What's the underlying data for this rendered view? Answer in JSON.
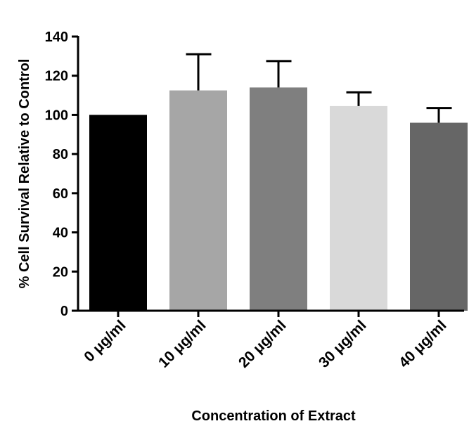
{
  "chart_data": {
    "type": "bar",
    "title": "",
    "xlabel": "Concentration of Extract",
    "ylabel": "% Cell Survival Relative to Control",
    "categories": [
      "0 μg/ml",
      "10 μg/ml",
      "20 μg/ml",
      "30 μg/ml",
      "40 μg/ml"
    ],
    "values": [
      100,
      112.5,
      114,
      104.5,
      96
    ],
    "error_upper": [
      0,
      18.5,
      13.5,
      7,
      7.5
    ],
    "bar_colors": [
      "#000000",
      "#a6a6a6",
      "#7f7f7f",
      "#d9d9d9",
      "#666666"
    ],
    "ylim": [
      0,
      140
    ],
    "yticks": [
      0,
      20,
      40,
      60,
      80,
      100,
      120,
      140
    ],
    "grid": false,
    "legend": "none"
  }
}
